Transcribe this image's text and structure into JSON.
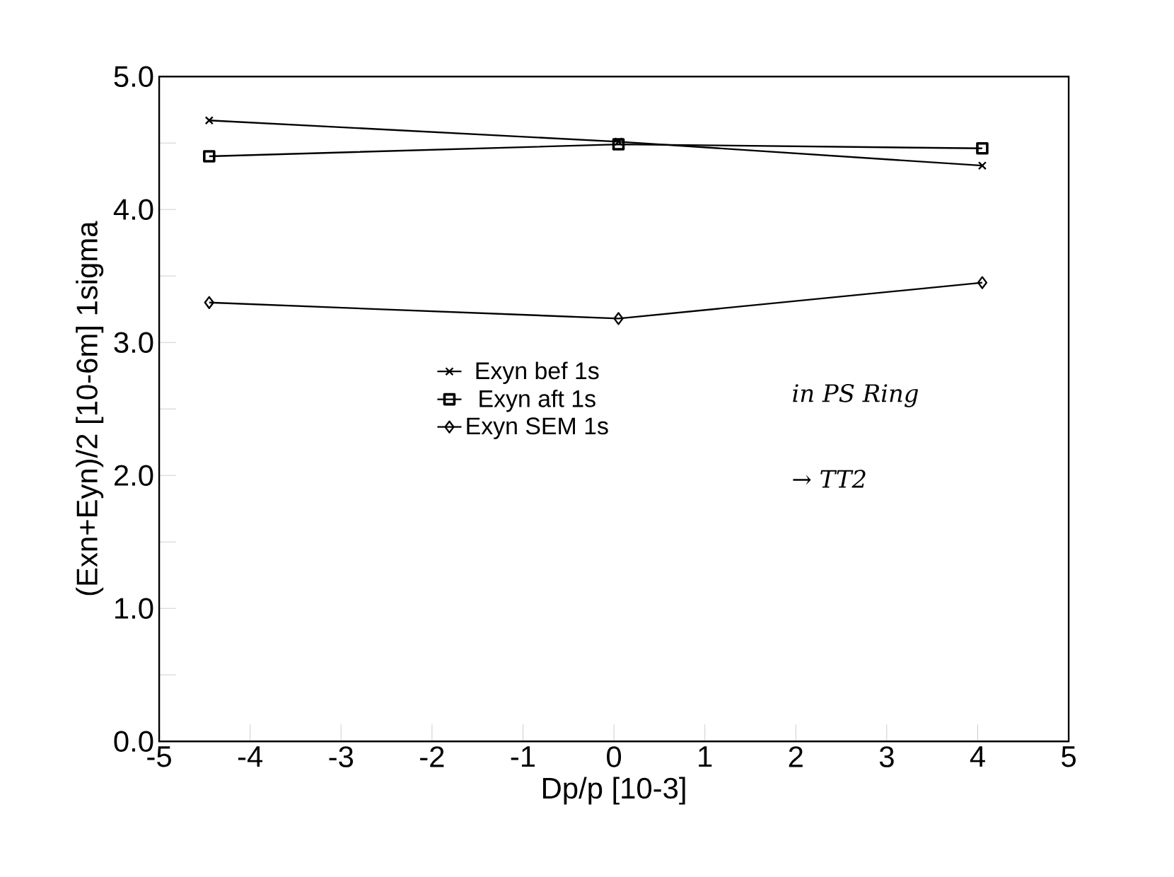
{
  "chart_data": {
    "type": "line",
    "xlabel": "Dp/p  [10-3]",
    "ylabel": "(Exn+Eyn)/2    [10-6m]    1sigma",
    "xlim": [
      -5,
      5
    ],
    "xticks": [
      -5,
      -4,
      -3,
      -2,
      -1,
      0,
      1,
      2,
      3,
      4,
      5
    ],
    "ylim": [
      0,
      5
    ],
    "yticks": [
      {
        "value": 0,
        "label": "0.0"
      },
      {
        "value": 0.5,
        "label": null
      },
      {
        "value": 1,
        "label": "1.0"
      },
      {
        "value": 1.5,
        "label": null
      },
      {
        "value": 2,
        "label": "2.0"
      },
      {
        "value": 2.5,
        "label": null
      },
      {
        "value": 3,
        "label": "3.0"
      },
      {
        "value": 3.5,
        "label": null
      },
      {
        "value": 4,
        "label": "4.0"
      },
      {
        "value": 4.5,
        "label": null
      },
      {
        "value": 5,
        "label": "5.0"
      }
    ],
    "grid": false,
    "legend": "center",
    "series": [
      {
        "name": "Exyn bef 1s",
        "color": "#000000",
        "marker": "cross",
        "x": [
          -4.45,
          0.05,
          4.05
        ],
        "values": [
          4.67,
          4.51,
          4.33
        ]
      },
      {
        "name": "Exyn aft 1s",
        "color": "#000000",
        "marker": "square",
        "x": [
          -4.45,
          0.05,
          4.05
        ],
        "values": [
          4.4,
          4.49,
          4.46
        ]
      },
      {
        "name": "Exyn SEM 1s",
        "color": "#000000",
        "marker": "diamond",
        "x": [
          -4.45,
          0.05,
          4.05
        ],
        "values": [
          3.3,
          3.18,
          3.45
        ]
      }
    ],
    "annotations": [
      "in PS Ring",
      "→ TT2"
    ]
  }
}
